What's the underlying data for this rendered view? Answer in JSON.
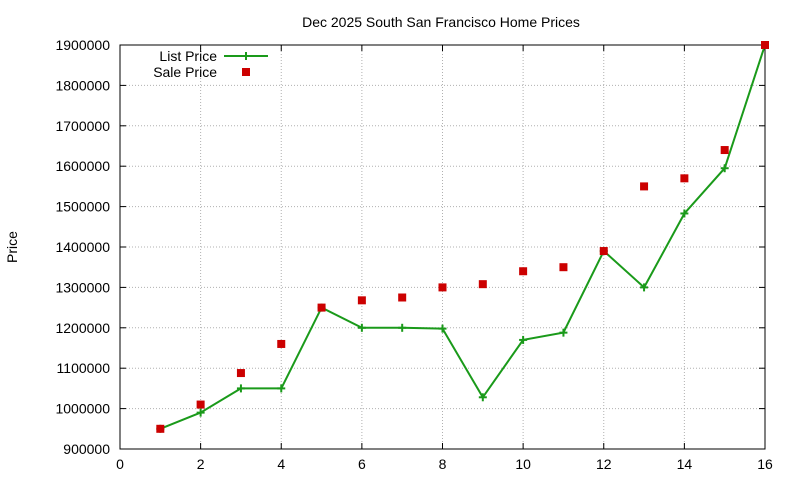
{
  "chart_data": {
    "type": "line",
    "title": "Dec 2025 South San Francisco Home Prices",
    "xlabel": "",
    "ylabel": "Price",
    "xlim": [
      0,
      16
    ],
    "ylim": [
      900000,
      1900000
    ],
    "x_ticks": [
      "0",
      "2",
      "4",
      "6",
      "8",
      "10",
      "12",
      "14",
      "16"
    ],
    "y_ticks": [
      "900000",
      "1000000",
      "1100000",
      "1200000",
      "1300000",
      "1400000",
      "1500000",
      "1600000",
      "1700000",
      "1800000",
      "1900000"
    ],
    "grid": true,
    "legend_position": "top-left",
    "x": [
      1,
      2,
      3,
      4,
      5,
      6,
      7,
      8,
      9,
      10,
      11,
      12,
      13,
      14,
      15,
      16
    ],
    "series": [
      {
        "name": "List Price",
        "style": "line+cross",
        "color": "#1a9a1a",
        "values": [
          950000,
          990000,
          1050000,
          1050000,
          1250000,
          1200000,
          1200000,
          1198000,
          1028000,
          1170000,
          1188000,
          1390000,
          1300000,
          1483000,
          1595000,
          1900000
        ]
      },
      {
        "name": "Sale Price",
        "style": "square",
        "color": "#cc0000",
        "values": [
          950000,
          1010000,
          1088000,
          1160000,
          1250000,
          1268000,
          1275000,
          1300000,
          1308000,
          1340000,
          1350000,
          1390000,
          1550000,
          1570000,
          1640000,
          1900000
        ]
      }
    ]
  }
}
